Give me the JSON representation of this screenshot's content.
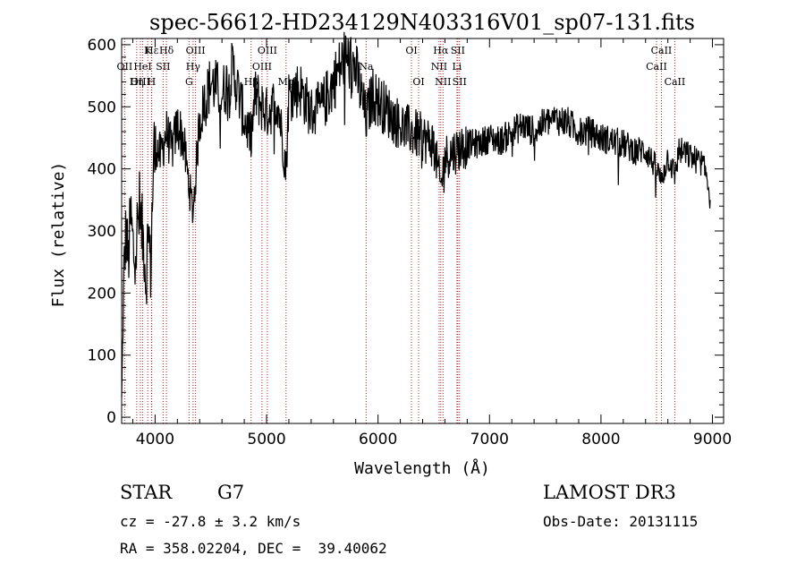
{
  "chart_data": {
    "type": "line",
    "title": "spec-56612-HD234129N403316V01_sp07-131.fits",
    "xlabel": "Wavelength (Å)",
    "ylabel": "Flux (relative)",
    "xlim": [
      3700,
      9100
    ],
    "ylim": [
      -10,
      610
    ],
    "xticks": [
      4000,
      5000,
      6000,
      7000,
      8000,
      9000
    ],
    "yticks": [
      0,
      100,
      200,
      300,
      400,
      500,
      600
    ],
    "x_tick_labels": [
      "4000",
      "5000",
      "6000",
      "7000",
      "8000",
      "9000"
    ],
    "y_tick_labels": [
      "0",
      "100",
      "200",
      "300",
      "400",
      "500",
      "600"
    ],
    "series": [
      {
        "name": "spectrum",
        "color": "#000000",
        "x": [
          3700,
          3720,
          3740,
          3760,
          3780,
          3800,
          3820,
          3840,
          3860,
          3880,
          3900,
          3920,
          3940,
          3960,
          3980,
          4000,
          4050,
          4100,
          4150,
          4200,
          4250,
          4300,
          4340,
          4400,
          4500,
          4600,
          4700,
          4800,
          4860,
          4900,
          5000,
          5100,
          5175,
          5200,
          5300,
          5400,
          5500,
          5600,
          5700,
          5800,
          5893,
          5950,
          6000,
          6100,
          6200,
          6300,
          6400,
          6500,
          6563,
          6600,
          6700,
          6800,
          6900,
          7000,
          7100,
          7200,
          7300,
          7400,
          7500,
          7600,
          7700,
          7800,
          7900,
          8000,
          8100,
          8200,
          8300,
          8400,
          8498,
          8542,
          8600,
          8662,
          8700,
          8800,
          8900,
          8950,
          8980
        ],
        "y": [
          30,
          230,
          300,
          250,
          320,
          280,
          240,
          300,
          330,
          300,
          280,
          210,
          320,
          230,
          380,
          440,
          420,
          460,
          430,
          470,
          450,
          380,
          330,
          480,
          540,
          520,
          560,
          480,
          450,
          520,
          490,
          510,
          400,
          520,
          530,
          490,
          500,
          540,
          580,
          560,
          480,
          520,
          510,
          490,
          470,
          460,
          450,
          440,
          370,
          420,
          430,
          440,
          440,
          450,
          445,
          460,
          470,
          460,
          475,
          480,
          475,
          460,
          460,
          450,
          445,
          440,
          430,
          430,
          400,
          380,
          420,
          390,
          430,
          420,
          410,
          390,
          350
        ]
      }
    ],
    "spectral_lines": [
      {
        "label": "Hε",
        "x": 3970,
        "row": 0
      },
      {
        "label": "K",
        "x": 3934,
        "row": 0
      },
      {
        "label": "Hδ",
        "x": 4102,
        "row": 0
      },
      {
        "label": "OIII",
        "x": 4363,
        "row": 0
      },
      {
        "label": "OIII",
        "x": 5007,
        "row": 0
      },
      {
        "label": "OI",
        "x": 6300,
        "row": 0
      },
      {
        "label": "Hα",
        "x": 6563,
        "row": 0
      },
      {
        "label": "SII",
        "x": 6716,
        "row": 0
      },
      {
        "label": "CaII",
        "x": 8542,
        "row": 0
      },
      {
        "label": "OII",
        "x": 3727,
        "row": 1
      },
      {
        "label": "HeI",
        "x": 3889,
        "row": 1
      },
      {
        "label": "SII",
        "x": 4072,
        "row": 1
      },
      {
        "label": "Hγ",
        "x": 4341,
        "row": 1
      },
      {
        "label": "OIII",
        "x": 4959,
        "row": 1
      },
      {
        "label": "Na",
        "x": 5893,
        "row": 1
      },
      {
        "label": "NII",
        "x": 6548,
        "row": 1
      },
      {
        "label": "Li",
        "x": 6708,
        "row": 1
      },
      {
        "label": "CaII",
        "x": 8498,
        "row": 1
      },
      {
        "label": "OIII",
        "x": 3868,
        "row": 2
      },
      {
        "label": "Hη",
        "x": 3835,
        "row": 2
      },
      {
        "label": "H",
        "x": 3968,
        "row": 2
      },
      {
        "label": "G",
        "x": 4305,
        "row": 2
      },
      {
        "label": "Hβ",
        "x": 4861,
        "row": 2
      },
      {
        "label": "Mg",
        "x": 5175,
        "row": 2
      },
      {
        "label": "OI",
        "x": 6364,
        "row": 2
      },
      {
        "label": "NII",
        "x": 6583,
        "row": 2
      },
      {
        "label": "SII",
        "x": 6731,
        "row": 2
      },
      {
        "label": "CaII",
        "x": 8662,
        "row": 2
      }
    ]
  },
  "info": {
    "class_label": "STAR",
    "subclass": "G7",
    "survey": "LAMOST DR3",
    "cz": "cz = -27.8 ± 3.2 km/s",
    "obs_date": "Obs-Date: 20131115",
    "coords": "RA = 358.02204, DEC =  39.40062"
  }
}
